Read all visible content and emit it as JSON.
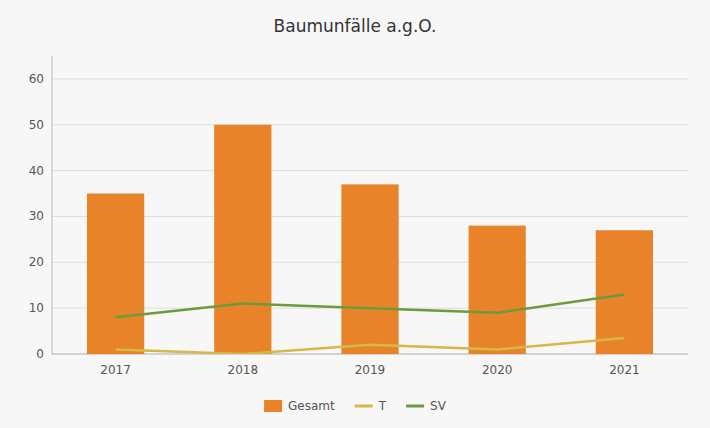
{
  "chart_data": {
    "type": "bar",
    "title": "Baumunfälle a.g.O.",
    "categories": [
      "2017",
      "2018",
      "2019",
      "2020",
      "2021"
    ],
    "series": [
      {
        "name": "Gesamt",
        "type": "bar",
        "color": "#E8832A",
        "values": [
          35,
          50,
          37,
          28,
          27
        ]
      },
      {
        "name": "T",
        "type": "line",
        "color": "#D4B84A",
        "values": [
          1,
          0,
          2,
          1,
          3.5
        ]
      },
      {
        "name": "SV",
        "type": "line",
        "color": "#6B9B3A",
        "values": [
          8,
          11,
          10,
          9,
          13
        ]
      }
    ],
    "ylim": [
      0,
      65
    ],
    "yticks": [
      0,
      10,
      20,
      30,
      40,
      50,
      60
    ],
    "grid": true,
    "legend": "bottom"
  }
}
